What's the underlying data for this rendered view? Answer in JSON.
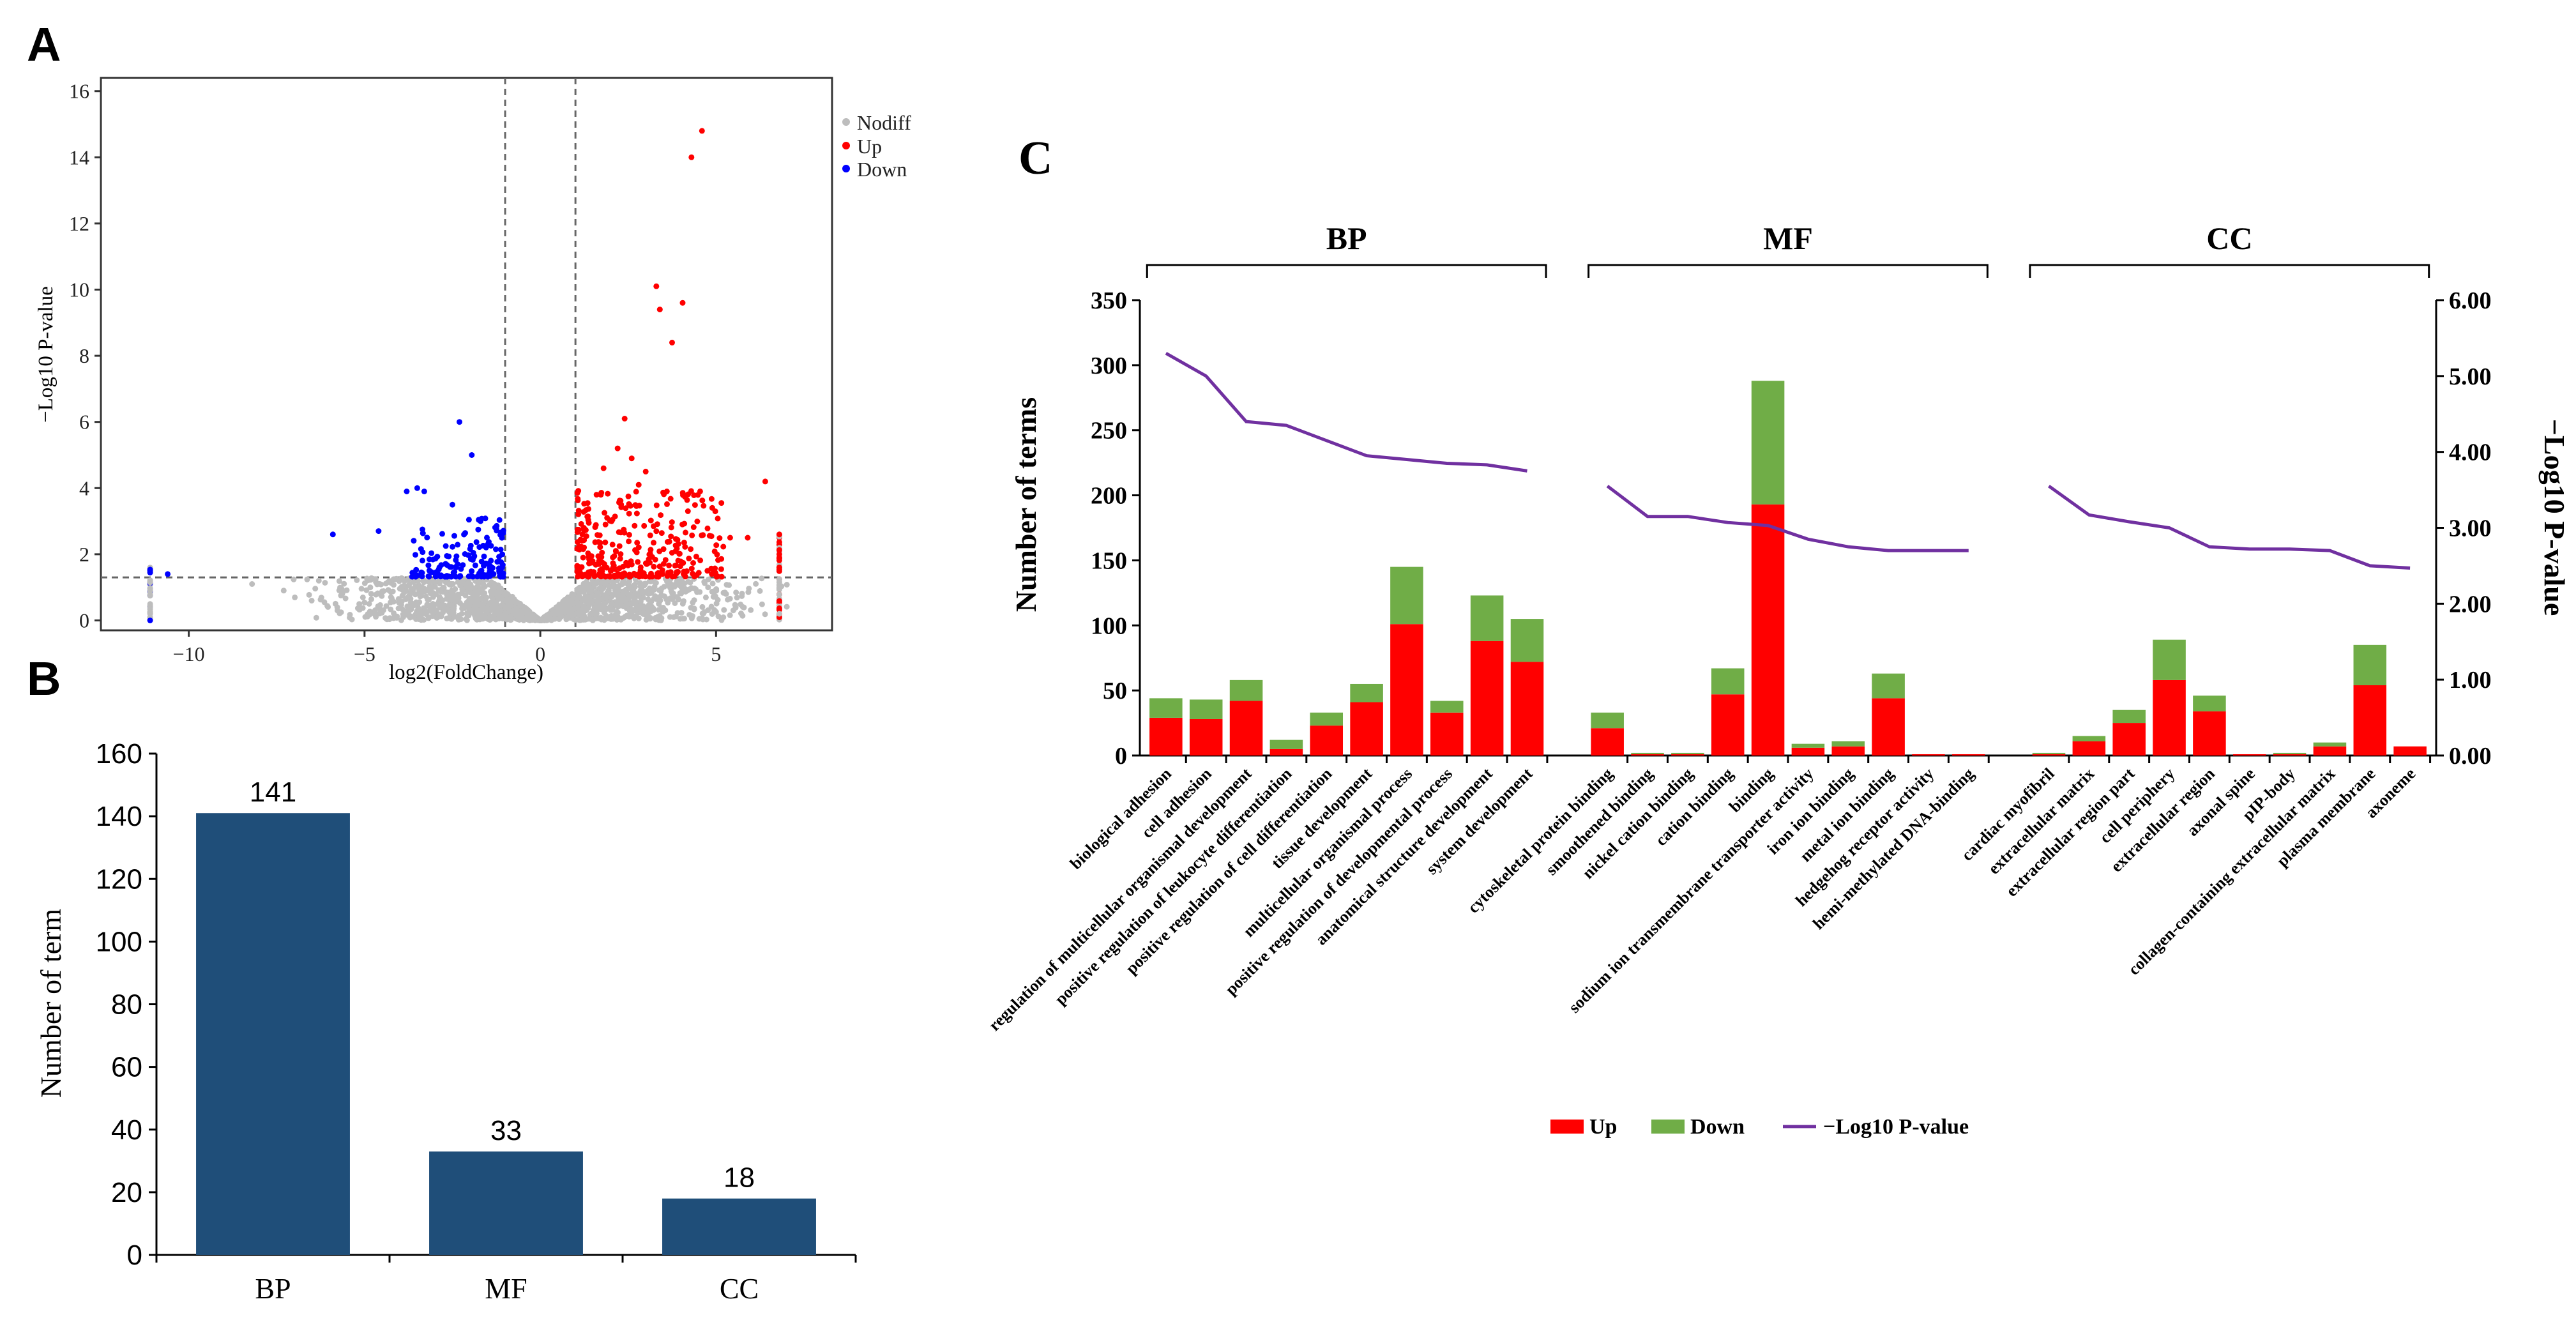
{
  "chart_data": [
    {
      "panel": "A",
      "type": "scatter",
      "title": "",
      "xlabel": "log2(FoldChange)",
      "ylabel": "−Log10 P-value",
      "xlim": [
        -12.5,
        8.3
      ],
      "ylim": [
        -0.3,
        16.4
      ],
      "xticks": [
        -10,
        -5,
        0,
        5
      ],
      "yticks": [
        0,
        2,
        4,
        6,
        8,
        10,
        12,
        14,
        16
      ],
      "thresholds": {
        "fold_change": [
          -1,
          1
        ],
        "p_value_line": 1.3
      },
      "legend": {
        "placement": "top-right",
        "entries": [
          "Nodiff",
          "Up",
          "Down"
        ]
      },
      "colors": {
        "Nodiff": "#bdbdbd",
        "Up": "#ff0000",
        "Down": "#0000ff"
      },
      "series": [
        {
          "name": "Up",
          "points": [
            [
              4.6,
              14.8
            ],
            [
              4.3,
              14.0
            ],
            [
              3.3,
              10.1
            ],
            [
              3.4,
              9.4
            ],
            [
              4.05,
              9.6
            ],
            [
              3.75,
              8.4
            ],
            [
              2.4,
              6.1
            ],
            [
              6.4,
              4.2
            ],
            [
              2.2,
              5.2
            ],
            [
              2.6,
              4.9
            ],
            [
              3.0,
              4.5
            ],
            [
              1.8,
              4.6
            ],
            [
              2.8,
              4.1
            ],
            [
              1.6,
              3.8
            ],
            [
              3.6,
              3.9
            ],
            [
              2.3,
              3.5
            ],
            [
              4.2,
              3.3
            ],
            [
              1.9,
              3.1
            ],
            [
              5.4,
              2.5
            ],
            [
              5.9,
              2.5
            ],
            [
              6.8,
              2.6
            ],
            [
              6.8,
              2.0
            ],
            [
              6.8,
              1.6
            ]
          ]
        },
        {
          "name": "Down",
          "points": [
            [
              -2.3,
              6.0
            ],
            [
              -1.95,
              5.0
            ],
            [
              -3.5,
              4.0
            ],
            [
              -3.8,
              3.9
            ],
            [
              -3.3,
              3.9
            ],
            [
              -4.6,
              2.7
            ],
            [
              -5.9,
              2.6
            ],
            [
              -2.5,
              3.5
            ],
            [
              -1.7,
              3.0
            ],
            [
              -11.1,
              1.5
            ],
            [
              -10.6,
              1.4
            ]
          ]
        },
        {
          "name": "Nodiff",
          "points": [
            [
              -11.1,
              0.2
            ],
            [
              -11.1,
              0.9
            ],
            [
              -6.3,
              1.2
            ],
            [
              -8.2,
              1.1
            ],
            [
              -7.3,
              0.9
            ],
            [
              6.8,
              0.2
            ],
            [
              6.8,
              1.0
            ]
          ]
        }
      ]
    },
    {
      "panel": "B",
      "type": "bar",
      "title": "",
      "xlabel": "",
      "ylabel": "Number of term",
      "ylim": [
        0,
        160
      ],
      "yticks": [
        0,
        20,
        40,
        60,
        80,
        100,
        120,
        140,
        160
      ],
      "categories": [
        "BP",
        "MF",
        "CC"
      ],
      "values": [
        141,
        33,
        18
      ],
      "data_labels": [
        "141",
        "33",
        "18"
      ],
      "colors": {
        "bar": "#1f4e79"
      }
    },
    {
      "panel": "C",
      "type": "bar",
      "stacked": true,
      "title": "",
      "xlabel": "",
      "ylabel": "Number of terms",
      "y2label": "−Log10 P-value",
      "ylim": [
        0,
        350
      ],
      "y2lim": [
        0,
        6
      ],
      "yticks": [
        0,
        50,
        100,
        150,
        200,
        250,
        300,
        350
      ],
      "y2ticks": [
        "0.00",
        "1.00",
        "2.00",
        "3.00",
        "4.00",
        "5.00",
        "6.00"
      ],
      "legend": {
        "placement": "bottom-center",
        "entries": [
          "Up",
          "Down",
          "−Log10 P-value"
        ]
      },
      "colors": {
        "Up": "#ff0000",
        "Down": "#70ad47",
        "line": "#7030a0"
      },
      "groups": [
        {
          "name": "BP",
          "categories": [
            "biological adhesion",
            "cell adhesion",
            "regulation of multicellular organismal development",
            "positive regulation of leukocyte differentiation",
            "positive regulation of cell differentiation",
            "tissue development",
            "multicellular organismal process",
            "positive regulation of developmental process",
            "anatomical structure development",
            "system development"
          ],
          "up": [
            29,
            28,
            42,
            5,
            23,
            41,
            101,
            33,
            88,
            72
          ],
          "down": [
            15,
            15,
            16,
            7,
            10,
            14,
            44,
            9,
            35,
            33
          ],
          "pvalue": [
            5.3,
            5.0,
            4.4,
            4.35,
            4.15,
            3.95,
            3.9,
            3.85,
            3.83,
            3.75
          ]
        },
        {
          "name": "MF",
          "categories": [
            "cytoskeletal protein binding",
            "smoothened binding",
            "nickel cation binding",
            "cation binding",
            "binding",
            "sodium ion transmembrane transporter activity",
            "iron ion binding",
            "metal ion binding",
            "hedgehog receptor activity",
            "hemi-methylated DNA-binding"
          ],
          "up": [
            21,
            1,
            1,
            47,
            193,
            6,
            7,
            44,
            1,
            1
          ],
          "down": [
            12,
            1,
            1,
            20,
            95,
            3,
            4,
            19,
            0,
            0
          ],
          "pvalue": [
            3.55,
            3.15,
            3.15,
            3.07,
            3.03,
            2.85,
            2.75,
            2.7,
            2.7,
            2.7
          ]
        },
        {
          "name": "CC",
          "categories": [
            "cardiac myofibril",
            "extracellular matrix",
            "extracellular region part",
            "cell periphery",
            "extracellular region",
            "axonal spine",
            "pIP-body",
            "collagen-containing extracellular matrix",
            "plasma membrane",
            "axoneme"
          ],
          "up": [
            1,
            11,
            25,
            58,
            34,
            1,
            1,
            7,
            54,
            7
          ],
          "down": [
            1,
            4,
            10,
            31,
            12,
            0,
            1,
            3,
            31,
            0
          ],
          "pvalue": [
            3.55,
            3.17,
            3.08,
            3.0,
            2.75,
            2.72,
            2.72,
            2.7,
            2.5,
            2.47
          ]
        }
      ]
    }
  ]
}
